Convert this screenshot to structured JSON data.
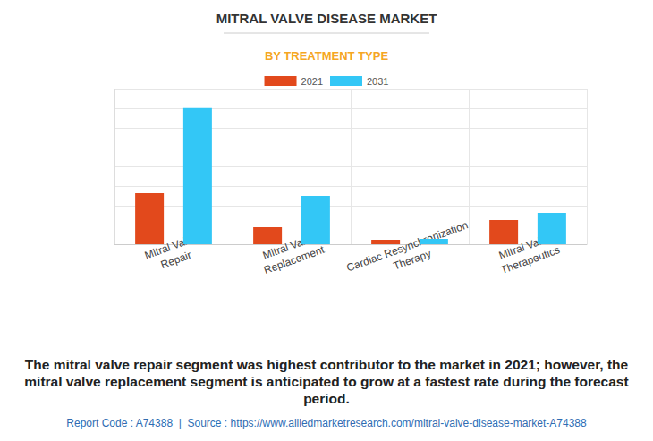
{
  "chart_data": {
    "type": "bar",
    "title": "MITRAL VALVE DISEASE MARKET",
    "subtitle": "BY TREATMENT TYPE",
    "categories": [
      "Mitral Valve Repair",
      "Mitral Valve Replacement",
      "Cardiac Resynchronization Therapy",
      "Mitral Valve Therapeutics"
    ],
    "series": [
      {
        "name": "2021",
        "color": "#e2491c",
        "values": [
          2.64,
          0.88,
          0.23,
          1.25
        ]
      },
      {
        "name": "2031",
        "color": "#33c7f6",
        "values": [
          7.04,
          2.5,
          0.28,
          1.62
        ]
      }
    ],
    "ylim": [
      0,
      8
    ],
    "yticks": [
      0,
      1,
      2,
      3,
      4,
      5,
      6,
      7,
      8
    ],
    "grid": true,
    "tick_labels": "x",
    "legend": "top",
    "caption": "The mitral valve repair segment was highest contributor to the market in 2021; however, the mitral valve replacement segment is anticipated to grow at a fastest rate during the forecast period.",
    "source": "Report Code : A74388  |  Source : https://www.alliedmarketresearch.com/mitral-valve-disease-market-A74388"
  }
}
